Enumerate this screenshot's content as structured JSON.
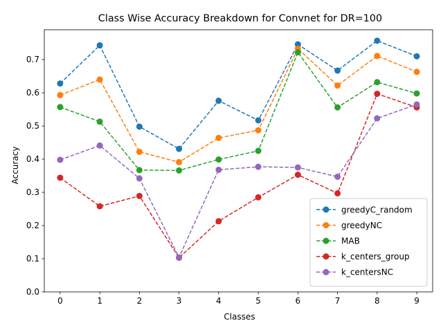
{
  "chart_data": {
    "type": "line",
    "title": "Class Wise Accuracy Breakdown for Convnet for DR=100",
    "xlabel": "Classes",
    "ylabel": "Accuracy",
    "categories": [
      0,
      1,
      2,
      3,
      4,
      5,
      6,
      7,
      8,
      9
    ],
    "x_ticks": [
      "0",
      "1",
      "2",
      "3",
      "4",
      "5",
      "6",
      "7",
      "8",
      "9"
    ],
    "y_ticks": [
      "0.0",
      "0.1",
      "0.2",
      "0.3",
      "0.4",
      "0.5",
      "0.6",
      "0.7"
    ],
    "xlim": [
      -0.4,
      9.4
    ],
    "ylim": [
      0,
      0.79
    ],
    "grid": false,
    "legend_position": "lower-right",
    "line_style": "dashed",
    "marker": "circle",
    "series": [
      {
        "name": "greedyC_random",
        "color": "#1f77b4",
        "values": [
          0.628,
          0.743,
          0.498,
          0.431,
          0.576,
          0.517,
          0.746,
          0.667,
          0.757,
          0.71
        ]
      },
      {
        "name": "greedyNC",
        "color": "#ff7f0e",
        "values": [
          0.593,
          0.64,
          0.422,
          0.391,
          0.464,
          0.487,
          0.733,
          0.622,
          0.711,
          0.663
        ]
      },
      {
        "name": "MAB",
        "color": "#2ca02c",
        "values": [
          0.557,
          0.513,
          0.367,
          0.366,
          0.399,
          0.425,
          0.722,
          0.556,
          0.632,
          0.598
        ]
      },
      {
        "name": "k_centers_group",
        "color": "#d62728",
        "values": [
          0.344,
          0.258,
          0.289,
          0.103,
          0.213,
          0.285,
          0.353,
          0.297,
          0.597,
          0.556
        ]
      },
      {
        "name": "k_centersNC",
        "color": "#9467bd",
        "values": [
          0.398,
          0.441,
          0.342,
          0.104,
          0.368,
          0.377,
          0.375,
          0.347,
          0.523,
          0.565
        ]
      }
    ]
  }
}
